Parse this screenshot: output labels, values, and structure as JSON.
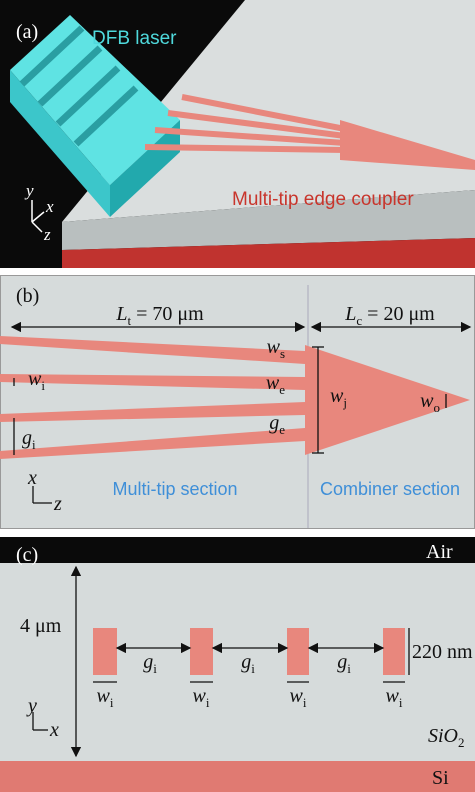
{
  "panel_a": {
    "label": "(a)",
    "laser": "DFB laser",
    "coupler": "Multi-tip edge coupler",
    "axes": {
      "y": "y",
      "x": "x",
      "z": "z"
    }
  },
  "panel_b": {
    "label": "(b)",
    "lt": {
      "base": "L",
      "sub": "t",
      "tail": " = 70 μm"
    },
    "lc": {
      "base": "L",
      "sub": "c",
      "tail": " = 20 μm"
    },
    "ws": {
      "base": "w",
      "sub": "s"
    },
    "wi": {
      "base": "w",
      "sub": "i"
    },
    "we": {
      "base": "w",
      "sub": "e"
    },
    "wj": {
      "base": "w",
      "sub": "j"
    },
    "wo": {
      "base": "w",
      "sub": "o"
    },
    "ge": {
      "base": "g",
      "sub": "e"
    },
    "gi": {
      "base": "g",
      "sub": "i"
    },
    "axes": {
      "x": "x",
      "z": "z"
    },
    "multi_tip": "Multi-tip section",
    "combiner": "Combiner section"
  },
  "panel_c": {
    "label": "(c)",
    "air": "Air",
    "height": "4 μm",
    "gaps": [
      {
        "base": "g",
        "sub": "i"
      },
      {
        "base": "g",
        "sub": "i"
      },
      {
        "base": "g",
        "sub": "i"
      }
    ],
    "widths": [
      {
        "base": "w",
        "sub": "i"
      },
      {
        "base": "w",
        "sub": "i"
      },
      {
        "base": "w",
        "sub": "i"
      },
      {
        "base": "w",
        "sub": "i"
      }
    ],
    "thickness": "220 nm",
    "sio2": {
      "base": "SiO",
      "sub": "2"
    },
    "si": "Si",
    "axes": {
      "y": "y",
      "x": "x"
    }
  }
}
